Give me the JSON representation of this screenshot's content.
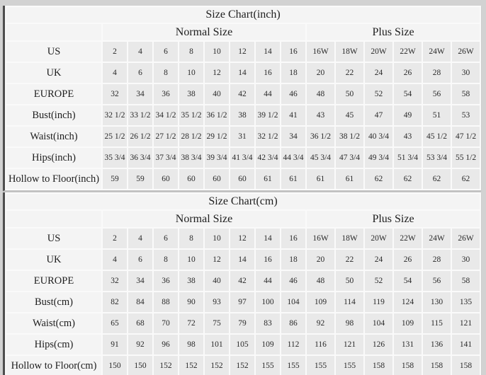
{
  "page": {
    "background_color": "#d2d2d2",
    "cell_color": "#e9e9e9",
    "label_color": "#f4f4f4",
    "separator_color": "#fafafa",
    "left_border_color": "#4e4e4e",
    "text_color": "#1e1e1e"
  },
  "chart_data": [
    {
      "type": "table",
      "title": "Size Chart(inch)",
      "column_groups": [
        {
          "label": "Normal Size",
          "span": 8
        },
        {
          "label": "Plus Size",
          "span": 6
        }
      ],
      "rows": [
        {
          "label": "US",
          "values": [
            "2",
            "4",
            "6",
            "8",
            "10",
            "12",
            "14",
            "16",
            "16W",
            "18W",
            "20W",
            "22W",
            "24W",
            "26W"
          ]
        },
        {
          "label": "UK",
          "values": [
            "4",
            "6",
            "8",
            "10",
            "12",
            "14",
            "16",
            "18",
            "20",
            "22",
            "24",
            "26",
            "28",
            "30"
          ]
        },
        {
          "label": "EUROPE",
          "values": [
            "32",
            "34",
            "36",
            "38",
            "40",
            "42",
            "44",
            "46",
            "48",
            "50",
            "52",
            "54",
            "56",
            "58"
          ]
        },
        {
          "label": "Bust(inch)",
          "values": [
            "32 1/2",
            "33 1/2",
            "34 1/2",
            "35 1/2",
            "36 1/2",
            "38",
            "39 1/2",
            "41",
            "43",
            "45",
            "47",
            "49",
            "51",
            "53"
          ]
        },
        {
          "label": "Waist(inch)",
          "values": [
            "25 1/2",
            "26 1/2",
            "27 1/2",
            "28 1/2",
            "29 1/2",
            "31",
            "32 1/2",
            "34",
            "36 1/2",
            "38 1/2",
            "40 3/4",
            "43",
            "45 1/2",
            "47 1/2"
          ]
        },
        {
          "label": "Hips(inch)",
          "values": [
            "35 3/4",
            "36 3/4",
            "37 3/4",
            "38 3/4",
            "39 3/4",
            "41 3/4",
            "42 3/4",
            "44 3/4",
            "45 3/4",
            "47 3/4",
            "49 3/4",
            "51 3/4",
            "53 3/4",
            "55 1/2"
          ]
        },
        {
          "label": "Hollow to Floor(inch)",
          "values": [
            "59",
            "59",
            "60",
            "60",
            "60",
            "60",
            "61",
            "61",
            "61",
            "61",
            "62",
            "62",
            "62",
            "62"
          ]
        }
      ]
    },
    {
      "type": "table",
      "title": "Size Chart(cm)",
      "column_groups": [
        {
          "label": "Normal Size",
          "span": 8
        },
        {
          "label": "Plus Size",
          "span": 6
        }
      ],
      "rows": [
        {
          "label": "US",
          "values": [
            "2",
            "4",
            "6",
            "8",
            "10",
            "12",
            "14",
            "16",
            "16W",
            "18W",
            "20W",
            "22W",
            "24W",
            "26W"
          ]
        },
        {
          "label": "UK",
          "values": [
            "4",
            "6",
            "8",
            "10",
            "12",
            "14",
            "16",
            "18",
            "20",
            "22",
            "24",
            "26",
            "28",
            "30"
          ]
        },
        {
          "label": "EUROPE",
          "values": [
            "32",
            "34",
            "36",
            "38",
            "40",
            "42",
            "44",
            "46",
            "48",
            "50",
            "52",
            "54",
            "56",
            "58"
          ]
        },
        {
          "label": "Bust(cm)",
          "values": [
            "82",
            "84",
            "88",
            "90",
            "93",
            "97",
            "100",
            "104",
            "109",
            "114",
            "119",
            "124",
            "130",
            "135"
          ]
        },
        {
          "label": "Waist(cm)",
          "values": [
            "65",
            "68",
            "70",
            "72",
            "75",
            "79",
            "83",
            "86",
            "92",
            "98",
            "104",
            "109",
            "115",
            "121"
          ]
        },
        {
          "label": "Hips(cm)",
          "values": [
            "91",
            "92",
            "96",
            "98",
            "101",
            "105",
            "109",
            "112",
            "116",
            "121",
            "126",
            "131",
            "136",
            "141"
          ]
        },
        {
          "label": "Hollow to Floor(cm)",
          "values": [
            "150",
            "150",
            "152",
            "152",
            "152",
            "152",
            "155",
            "155",
            "155",
            "155",
            "158",
            "158",
            "158",
            "158"
          ]
        }
      ]
    }
  ]
}
